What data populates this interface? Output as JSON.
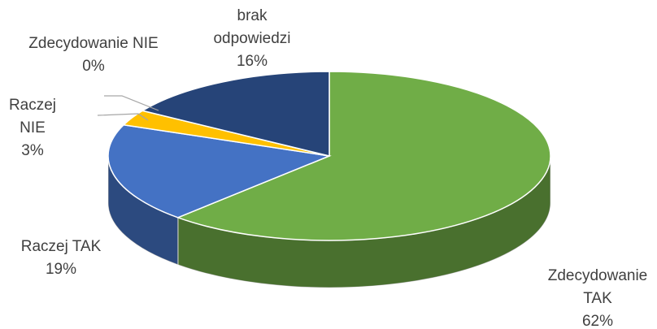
{
  "chart_data": {
    "type": "pie3d",
    "categories": [
      "Zdecydowanie TAK",
      "Raczej TAK",
      "Raczej NIE",
      "Zdecydowanie NIE",
      "brak odpowiedzi"
    ],
    "values": [
      62,
      19,
      3,
      0,
      16
    ],
    "value_labels": [
      "62%",
      "19%",
      "3%",
      "0%",
      "16%"
    ],
    "colors": [
      "#70ad47",
      "#4472c4",
      "#ffc000",
      "#a5a5a5",
      "#264478"
    ]
  }
}
